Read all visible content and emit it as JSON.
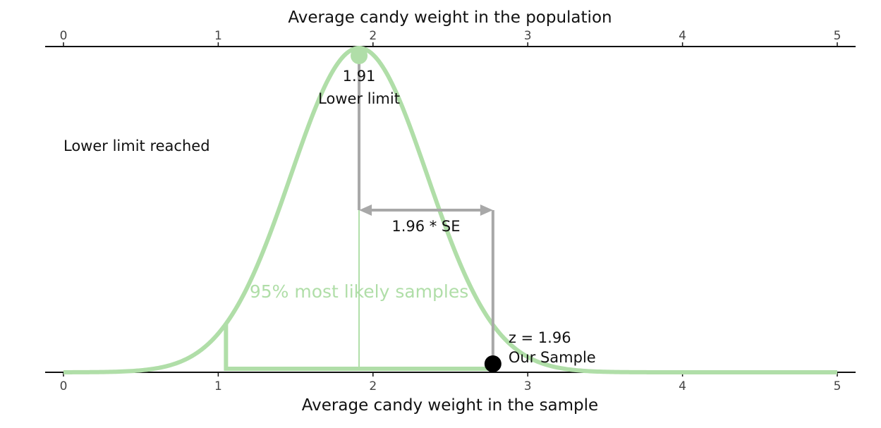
{
  "chart_data": {
    "type": "line",
    "title": "",
    "xlabel": "Average candy weight in the sample",
    "x2label": "Average candy weight in the population",
    "xlim": [
      0,
      5
    ],
    "ticks": [
      0,
      1,
      2,
      3,
      4,
      5
    ],
    "tick_labels": [
      "0",
      "1",
      "2",
      "3",
      "4",
      "5"
    ],
    "distribution": {
      "mean": 1.91,
      "se": 0.4413
    },
    "lower_limit": {
      "x": 1.91,
      "value_label": "1.91",
      "label": "Lower limit"
    },
    "sample": {
      "x": 2.775,
      "z_label": "z = 1.96",
      "label": "Our Sample"
    },
    "interval": {
      "from": 1.05,
      "to": 2.775,
      "label": "95% most likely samples"
    },
    "se_label": "1.96 * SE",
    "status_text": "Lower limit reached",
    "colors": {
      "curve": "#b0dea8",
      "arrow": "#a8a8a8",
      "status": "#2b87bd",
      "axis": "#111111",
      "sample_point": "#000000"
    }
  }
}
